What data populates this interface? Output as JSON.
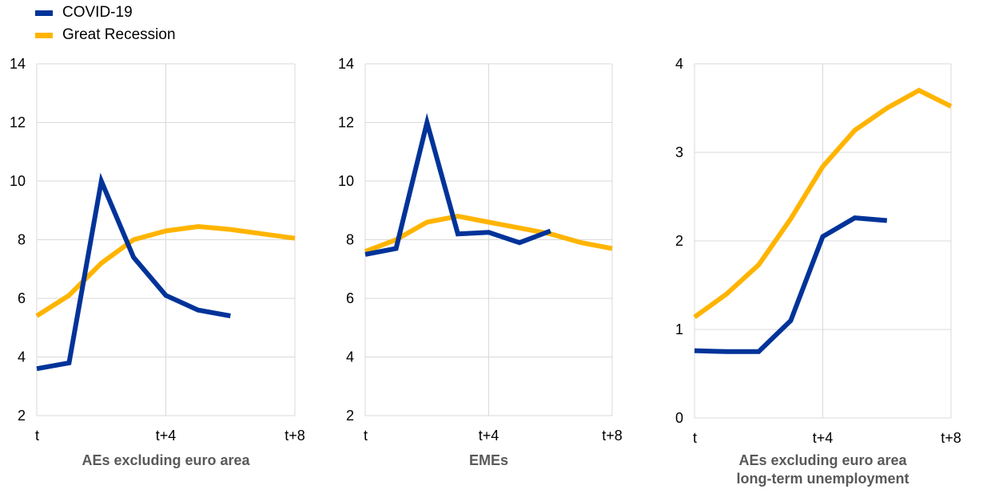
{
  "legend": {
    "items": [
      {
        "label": "COVID-19",
        "color": "#003399"
      },
      {
        "label": "Great Recession",
        "color": "#FFB400"
      }
    ]
  },
  "chart_data": [
    {
      "type": "line",
      "title": "AEs excluding euro area",
      "title_line2": "",
      "x": [
        0,
        1,
        2,
        3,
        4,
        5,
        6,
        7,
        8
      ],
      "xtick_labels": [
        "t",
        "t+4",
        "t+8"
      ],
      "xtick_positions": [
        0,
        4,
        8
      ],
      "ylim": [
        2,
        14
      ],
      "yticks": [
        2,
        4,
        6,
        8,
        10,
        12,
        14
      ],
      "grid": true,
      "series": [
        {
          "name": "COVID-19",
          "color": "#003399",
          "values": [
            3.6,
            3.8,
            10.0,
            7.4,
            6.1,
            5.6,
            5.4,
            null,
            null
          ]
        },
        {
          "name": "Great Recession",
          "color": "#FFB400",
          "values": [
            5.4,
            6.1,
            7.2,
            8.0,
            8.3,
            8.45,
            8.35,
            8.2,
            8.05
          ]
        }
      ]
    },
    {
      "type": "line",
      "title": "EMEs",
      "title_line2": "",
      "x": [
        0,
        1,
        2,
        3,
        4,
        5,
        6,
        7,
        8
      ],
      "xtick_labels": [
        "t",
        "t+4",
        "t+8"
      ],
      "xtick_positions": [
        0,
        4,
        8
      ],
      "ylim": [
        2,
        14
      ],
      "yticks": [
        2,
        4,
        6,
        8,
        10,
        12,
        14
      ],
      "grid": true,
      "series": [
        {
          "name": "COVID-19",
          "color": "#003399",
          "values": [
            7.5,
            7.7,
            12.0,
            8.2,
            8.25,
            7.9,
            8.3,
            null,
            null
          ]
        },
        {
          "name": "Great Recession",
          "color": "#FFB400",
          "values": [
            7.6,
            8.0,
            8.6,
            8.8,
            8.6,
            8.4,
            8.2,
            7.9,
            7.7
          ]
        }
      ]
    },
    {
      "type": "line",
      "title": "AEs excluding euro area",
      "title_line2": "long-term unemployment",
      "x": [
        0,
        1,
        2,
        3,
        4,
        5,
        6,
        7,
        8
      ],
      "xtick_labels": [
        "t",
        "t+4",
        "t+8"
      ],
      "xtick_positions": [
        0,
        4,
        8
      ],
      "ylim": [
        0,
        4
      ],
      "yticks": [
        0,
        1,
        2,
        3,
        4
      ],
      "grid": true,
      "series": [
        {
          "name": "COVID-19",
          "color": "#003399",
          "values": [
            0.76,
            0.75,
            0.75,
            1.1,
            2.05,
            2.26,
            2.23,
            null,
            null
          ]
        },
        {
          "name": "Great Recession",
          "color": "#FFB400",
          "values": [
            1.14,
            1.4,
            1.73,
            2.25,
            2.84,
            3.25,
            3.5,
            3.7,
            3.52
          ]
        }
      ]
    }
  ]
}
